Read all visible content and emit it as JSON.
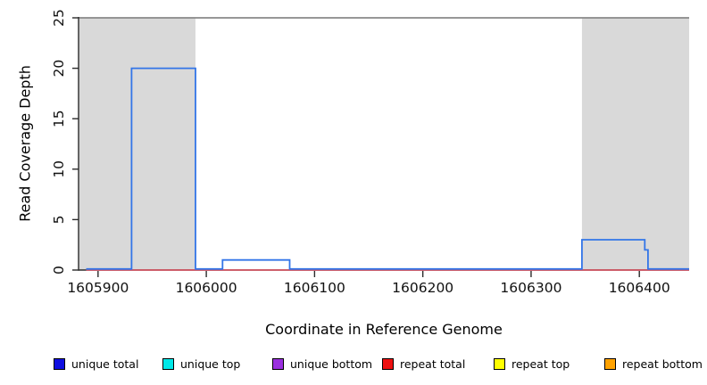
{
  "figure": {
    "background": "#ffffff",
    "xlabel": "Coordinate in Reference Genome",
    "ylabel": "Read Coverage Depth"
  },
  "chart_data": {
    "type": "line",
    "subtype": "step-coverage",
    "title": "",
    "xlabel": "Coordinate in Reference Genome",
    "ylabel": "Read Coverage Depth",
    "xlim": [
      1605882,
      1606446
    ],
    "ylim": [
      0,
      25
    ],
    "x_ticks": [
      1605900,
      1606000,
      1606100,
      1606200,
      1606300,
      1606400
    ],
    "y_ticks": [
      0,
      5,
      10,
      15,
      20,
      25
    ],
    "grid": false,
    "legend_position": "bottom",
    "axis_color": "#2b2b2b",
    "top_rule": {
      "y": 25,
      "color": "#888888"
    },
    "shaded_regions": {
      "color": "#d9d9d9",
      "ranges": [
        [
          1605882,
          1605990
        ],
        [
          1606347,
          1606446
        ]
      ]
    },
    "series": [
      {
        "name": "unique total",
        "swatch": "#0f0fe0",
        "line_color": "#3275e8",
        "visible": true,
        "points": [
          [
            1605889,
            0
          ],
          [
            1605931,
            0
          ],
          [
            1605931,
            20
          ],
          [
            1605990,
            20
          ],
          [
            1605990,
            0
          ],
          [
            1606015,
            0
          ],
          [
            1606015,
            1
          ],
          [
            1606077,
            1
          ],
          [
            1606077,
            0
          ],
          [
            1606347,
            0
          ],
          [
            1606347,
            3
          ],
          [
            1606405,
            3
          ],
          [
            1606405,
            2
          ],
          [
            1606408,
            2
          ],
          [
            1606408,
            0
          ],
          [
            1606446,
            0
          ]
        ]
      },
      {
        "name": "unique top",
        "swatch": "#00e8e8",
        "visible": false,
        "points": []
      },
      {
        "name": "unique bottom",
        "swatch": "#9b30e0",
        "visible": false,
        "points": []
      },
      {
        "name": "repeat total",
        "swatch": "#ee1111",
        "line_color": "#e14f5e",
        "visible": true,
        "points": [
          [
            1605889,
            0
          ],
          [
            1606446,
            0
          ]
        ]
      },
      {
        "name": "repeat top",
        "swatch": "#ffff00",
        "visible": false,
        "points": []
      },
      {
        "name": "repeat bottom",
        "swatch": "#ffa200",
        "visible": false,
        "points": []
      }
    ]
  }
}
